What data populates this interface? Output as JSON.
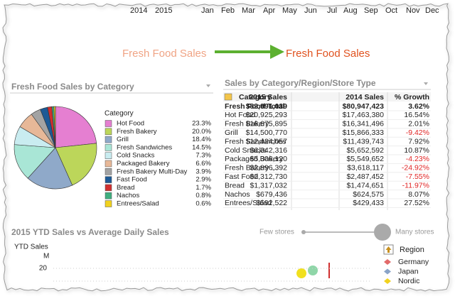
{
  "timeline": {
    "years": [
      "2014",
      "2015"
    ],
    "months": [
      "Jan",
      "Feb",
      "Mar",
      "Apr",
      "May",
      "Jun",
      "Jul",
      "Aug",
      "Sep",
      "Oct",
      "Nov",
      "Dec"
    ]
  },
  "header": {
    "left_title": "Fresh Food Sales",
    "right_title": "Fresh Food Sales"
  },
  "pie_panel": {
    "title": "Fresh Food Sales by Category",
    "legend_title": "Category",
    "pie": {
      "type": "pie",
      "categories": [
        "Hot Food",
        "Fresh Bakery",
        "Grill",
        "Fresh Sandwiches",
        "Cold Snacks",
        "Packaged Bakery",
        "Fresh Bakery Multi-Day",
        "Fast Food",
        "Bread",
        "Nachos",
        "Entrees/Salad"
      ],
      "values": [
        23.3,
        20.0,
        18.4,
        14.5,
        7.3,
        6.6,
        3.9,
        2.9,
        1.7,
        0.8,
        0.6
      ],
      "value_labels": [
        "23.3%",
        "20.0%",
        "18.4%",
        "14.5%",
        "7.3%",
        "6.6%",
        "3.9%",
        "2.9%",
        "1.7%",
        "0.8%",
        "0.6%"
      ],
      "colors": [
        "#e57fd1",
        "#bcd65a",
        "#8fa9c9",
        "#a9e6d6",
        "#c9ecf0",
        "#e7b898",
        "#a3a3a3",
        "#1d5a96",
        "#d02f2f",
        "#3fae7f",
        "#f1d21e"
      ]
    }
  },
  "table_panel": {
    "title": "Sales by Category/Region/Store Type",
    "table": {
      "columns": [
        "Category",
        "2015 Sales",
        "2014 Sales",
        "% Growth"
      ],
      "rows": [
        [
          "Fresh Food Total",
          "$83,991,039",
          "$80,947,423",
          "3.62%"
        ],
        [
          "Hot Food",
          "$20,925,293",
          "$17,463,380",
          "16.54%"
        ],
        [
          "Fresh Bakery",
          "$16,675,895",
          "$16,341,496",
          "2.01%"
        ],
        [
          "Grill",
          "$14,500,770",
          "$15,866,333",
          "-9.42%"
        ],
        [
          "Fresh Sandwiches",
          "$12,424,057",
          "$11,439,743",
          "7.92%"
        ],
        [
          "Cold Snacks",
          "$6,342,316",
          "$5,652,592",
          "10.87%"
        ],
        [
          "Packaged Bakery",
          "$5,306,120",
          "$5,549,652",
          "-4.23%"
        ],
        [
          "Fresh Bakery ...",
          "$2,896,392",
          "$3,618,117",
          "-24.92%"
        ],
        [
          "Fast Food",
          "$2,312,730",
          "$2,487,452",
          "-7.55%"
        ],
        [
          "Bread",
          "$1,317,032",
          "$1,474,651",
          "-11.97%"
        ],
        [
          "Nachos",
          "$679,436",
          "$624,575",
          "8.07%"
        ],
        [
          "Entrees/Salad",
          "$592,522",
          "$429,433",
          "27.52%"
        ]
      ]
    }
  },
  "scatter_panel": {
    "title": "2015 YTD Sales vs Average Daily Sales",
    "slider_min_label": "Few stores",
    "slider_max_label": "Many stores",
    "y_axis_label": "YTD Sales",
    "y_axis_unit": "M",
    "yticks": [
      20
    ],
    "legend_title": "Region",
    "legend": [
      {
        "name": "Germany",
        "color": "#e26a6a"
      },
      {
        "name": "Japan",
        "color": "#8aa4c8"
      },
      {
        "name": "Nordic",
        "color": "#f1d21e"
      }
    ]
  }
}
